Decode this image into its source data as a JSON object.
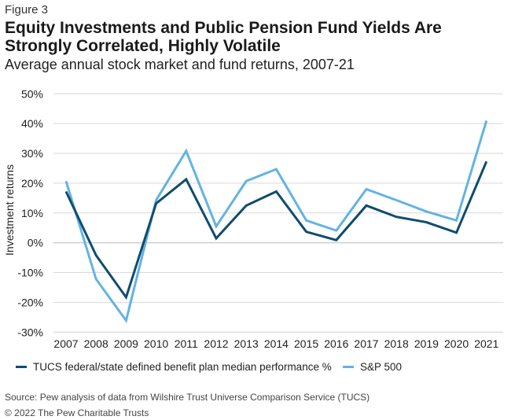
{
  "figure_label": "Figure 3",
  "title": "Equity Investments and Public Pension Fund Yields Are Strongly Correlated, Highly Volatile",
  "subtitle": "Average annual stock market and fund returns, 2007-21",
  "source": "Source: Pew analysis of data from Wilshire Trust Universe Comparison Service (TUCS)",
  "copyright": "© 2022 The Pew Charitable Trusts",
  "chart_data": {
    "type": "line",
    "ylabel": "Investment returns",
    "xlabel": "",
    "ylim": [
      -30,
      50
    ],
    "yticks": [
      50,
      40,
      30,
      20,
      10,
      0,
      -10,
      -20,
      -30
    ],
    "ytick_labels": [
      "50%",
      "40%",
      "30%",
      "20%",
      "10%",
      "0%",
      "-10%",
      "-20%",
      "-30%"
    ],
    "categories": [
      "2007",
      "2008",
      "2009",
      "2010",
      "2011",
      "2012",
      "2013",
      "2014",
      "2015",
      "2016",
      "2017",
      "2018",
      "2019",
      "2020",
      "2021"
    ],
    "grid": true,
    "legend_position": "bottom",
    "series": [
      {
        "name": "TUCS federal/state defined benefit plan median performance %",
        "color": "#0f4c6e",
        "values": [
          17.2,
          -4.2,
          -18.3,
          13.2,
          21.3,
          1.5,
          12.5,
          17.2,
          3.7,
          0.9,
          12.5,
          8.7,
          6.9,
          3.4,
          27.3
        ]
      },
      {
        "name": "S&P 500",
        "color": "#62b3e4",
        "values": [
          20.7,
          -12.2,
          -26.1,
          14.3,
          30.8,
          5.5,
          20.7,
          24.7,
          7.5,
          4.1,
          18.0,
          14.3,
          10.5,
          7.5,
          41.0
        ]
      }
    ]
  }
}
